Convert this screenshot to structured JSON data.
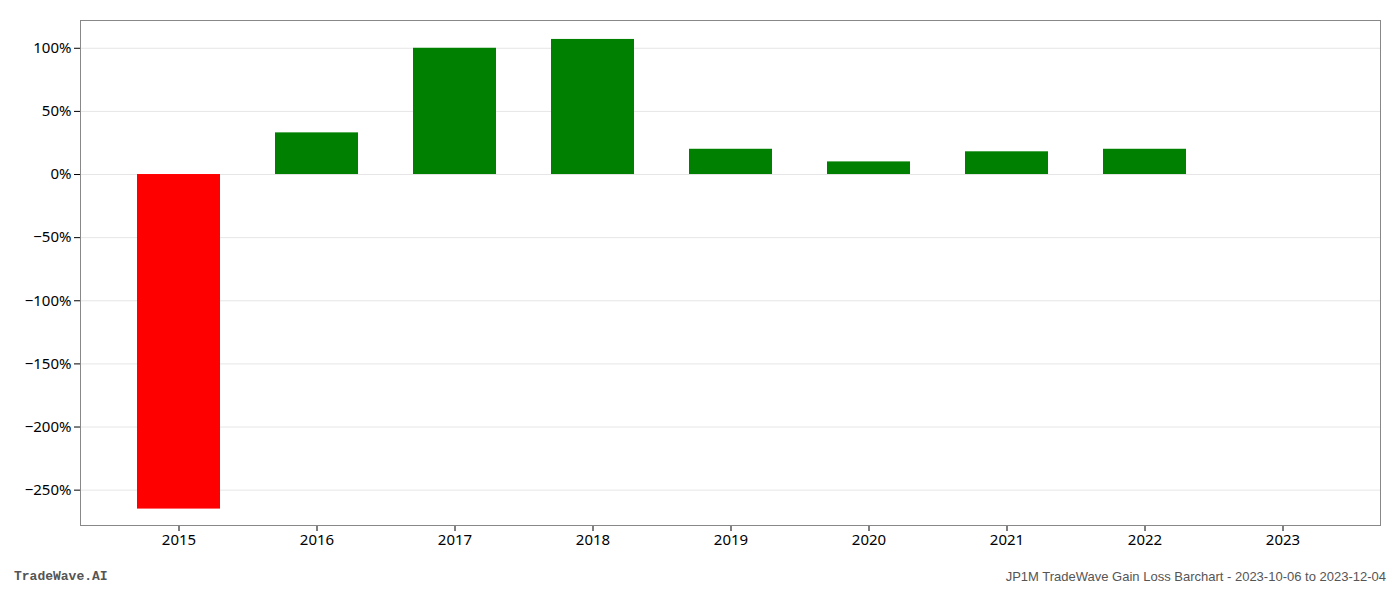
{
  "chart_data": {
    "type": "bar",
    "categories": [
      "2015",
      "2016",
      "2017",
      "2018",
      "2019",
      "2020",
      "2021",
      "2022",
      "2023"
    ],
    "values": [
      -2.65,
      0.33,
      1.0,
      1.07,
      0.2,
      0.1,
      0.18,
      0.2,
      0.0
    ],
    "colors": [
      "#ff0000",
      "#008000",
      "#008000",
      "#008000",
      "#008000",
      "#008000",
      "#008000",
      "#008000",
      "#008000"
    ],
    "ylim": [
      -2.78,
      1.22
    ],
    "yticks": [
      {
        "value": -2.5,
        "label": "−250%"
      },
      {
        "value": -2.0,
        "label": "−200%"
      },
      {
        "value": -1.5,
        "label": "−150%"
      },
      {
        "value": -1.0,
        "label": "−100%"
      },
      {
        "value": -0.5,
        "label": "−50%"
      },
      {
        "value": 0.0,
        "label": "0%"
      },
      {
        "value": 0.5,
        "label": "50%"
      },
      {
        "value": 1.0,
        "label": "100%"
      }
    ],
    "grid": true,
    "annotations": [
      "TradeWave.AI",
      "JP1M TradeWave Gain Loss Barchart - 2023-10-06 to 2023-12-04"
    ]
  }
}
